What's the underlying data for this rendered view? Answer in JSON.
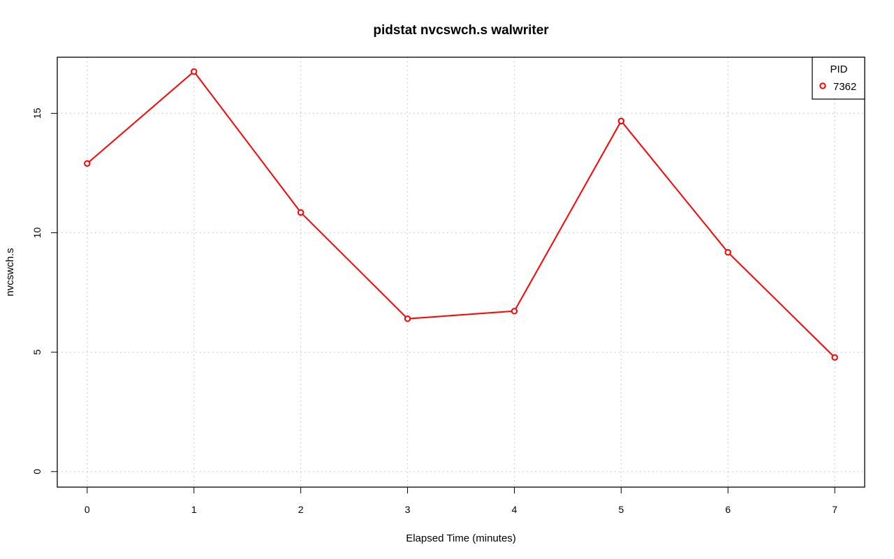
{
  "chart_data": {
    "type": "line",
    "title": "pidstat nvcswch.s walwriter",
    "xlabel": "Elapsed Time (minutes)",
    "ylabel": "nvcswch.s",
    "x": [
      0,
      1,
      2,
      3,
      4,
      5,
      6,
      7
    ],
    "xticks": [
      "0",
      "1",
      "2",
      "3",
      "4",
      "5",
      "6",
      "7"
    ],
    "yticks": [
      "0",
      "5",
      "10",
      "15"
    ],
    "xlim": [
      -0.28,
      7.28
    ],
    "ylim": [
      -0.65,
      17.35
    ],
    "grid": true,
    "legend": {
      "title": "PID",
      "position": "top-right"
    },
    "series": [
      {
        "name": "7362",
        "color": "#ff0000",
        "marker": "open-circle",
        "values": [
          12.9,
          16.75,
          10.85,
          6.4,
          6.72,
          14.68,
          9.18,
          4.78
        ]
      }
    ]
  }
}
